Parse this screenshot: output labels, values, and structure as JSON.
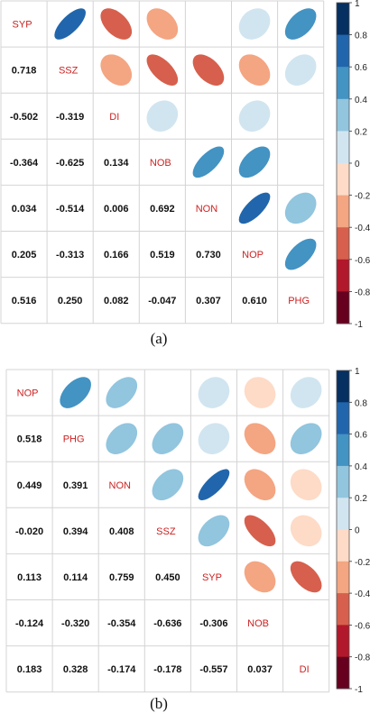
{
  "panels": [
    {
      "label": "(a)",
      "colorbar_ticks": [
        "1",
        "0.8",
        "0.6",
        "0.4",
        "0.2",
        "0",
        "-0.2",
        "-0.4",
        "-0.6",
        "-0.8",
        "-1"
      ]
    },
    {
      "label": "(b)",
      "colorbar_ticks": [
        "1",
        "0.8",
        "0.6",
        "0.4",
        "0.2",
        "0",
        "-0.2",
        "-0.4",
        "-0.6",
        "-0.8",
        "-1"
      ]
    }
  ],
  "colors": {
    "diag_label": "#cc2222",
    "value_text": "#111111",
    "scale": [
      "#67001f",
      "#b2182b",
      "#d6604d",
      "#f4a582",
      "#fddbc7",
      "#ffffff",
      "#d1e5f0",
      "#92c5de",
      "#4393c3",
      "#2166ac",
      "#053061"
    ]
  },
  "chart_data": [
    {
      "type": "heatmap",
      "title": "",
      "variables": [
        "SYP",
        "SSZ",
        "DI",
        "NOB",
        "NON",
        "NOP",
        "PHG"
      ],
      "lower_values": [
        [
          "0.718"
        ],
        [
          "-0.502",
          "-0.319"
        ],
        [
          "-0.364",
          "-0.625",
          "0.134"
        ],
        [
          "0.034",
          "-0.514",
          "0.006",
          "0.692"
        ],
        [
          "0.205",
          "-0.313",
          "0.166",
          "0.519",
          "0.730"
        ],
        [
          "0.516",
          "0.250",
          "0.082",
          "-0.047",
          "0.307",
          "0.610"
        ]
      ],
      "colorbar_range": [
        -1,
        1
      ]
    },
    {
      "type": "heatmap",
      "title": "",
      "variables": [
        "NOP",
        "PHG",
        "NON",
        "SSZ",
        "SYP",
        "NOB",
        "DI"
      ],
      "lower_values": [
        [
          "0.518"
        ],
        [
          "0.449",
          "0.391"
        ],
        [
          "-0.020",
          "0.394",
          "0.408"
        ],
        [
          "0.113",
          "0.114",
          "0.759",
          "0.450"
        ],
        [
          "-0.124",
          "-0.320",
          "-0.354",
          "-0.636",
          "-0.306"
        ],
        [
          "0.183",
          "0.328",
          "-0.174",
          "-0.178",
          "-0.557",
          "0.037"
        ]
      ],
      "colorbar_range": [
        -1,
        1
      ]
    }
  ]
}
